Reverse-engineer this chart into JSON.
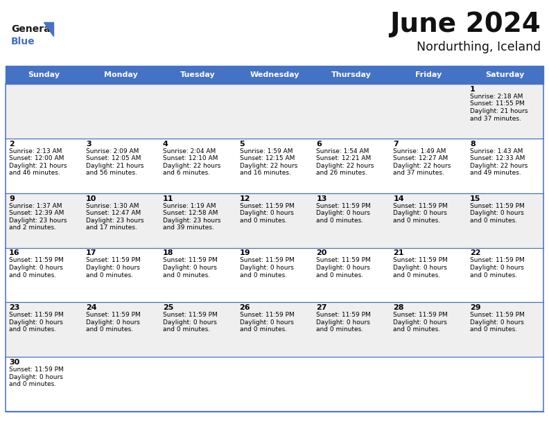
{
  "title": "June 2024",
  "subtitle": "Nordurthing, Iceland",
  "header_color": "#4472C4",
  "header_text_color": "#FFFFFF",
  "days_of_week": [
    "Sunday",
    "Monday",
    "Tuesday",
    "Wednesday",
    "Thursday",
    "Friday",
    "Saturday"
  ],
  "bg_color": "#FFFFFF",
  "alt_row_color": "#EFEFEF",
  "cell_text_color": "#000000",
  "border_color": "#4472C4",
  "calendar_data": [
    [
      null,
      null,
      null,
      null,
      null,
      null,
      {
        "day": 1,
        "sunrise": "2:18 AM",
        "sunset": "11:55 PM",
        "daylight": "21 hours and 37 minutes"
      }
    ],
    [
      {
        "day": 2,
        "sunrise": "2:13 AM",
        "sunset": "12:00 AM",
        "daylight": "21 hours and 46 minutes"
      },
      {
        "day": 3,
        "sunrise": "2:09 AM",
        "sunset": "12:05 AM",
        "daylight": "21 hours and 56 minutes"
      },
      {
        "day": 4,
        "sunrise": "2:04 AM",
        "sunset": "12:10 AM",
        "daylight": "22 hours and 6 minutes"
      },
      {
        "day": 5,
        "sunrise": "1:59 AM",
        "sunset": "12:15 AM",
        "daylight": "22 hours and 16 minutes"
      },
      {
        "day": 6,
        "sunrise": "1:54 AM",
        "sunset": "12:21 AM",
        "daylight": "22 hours and 26 minutes"
      },
      {
        "day": 7,
        "sunrise": "1:49 AM",
        "sunset": "12:27 AM",
        "daylight": "22 hours and 37 minutes"
      },
      {
        "day": 8,
        "sunrise": "1:43 AM",
        "sunset": "12:33 AM",
        "daylight": "22 hours and 49 minutes"
      }
    ],
    [
      {
        "day": 9,
        "sunrise": "1:37 AM",
        "sunset": "12:39 AM",
        "daylight": "23 hours and 2 minutes"
      },
      {
        "day": 10,
        "sunrise": "1:30 AM",
        "sunset": "12:47 AM",
        "daylight": "23 hours and 17 minutes"
      },
      {
        "day": 11,
        "sunrise": "1:19 AM",
        "sunset": "12:58 AM",
        "daylight": "23 hours and 39 minutes"
      },
      {
        "day": 12,
        "sunrise": null,
        "sunset": "11:59 PM",
        "daylight": "0 hours and 0 minutes"
      },
      {
        "day": 13,
        "sunrise": null,
        "sunset": "11:59 PM",
        "daylight": "0 hours and 0 minutes"
      },
      {
        "day": 14,
        "sunrise": null,
        "sunset": "11:59 PM",
        "daylight": "0 hours and 0 minutes"
      },
      {
        "day": 15,
        "sunrise": null,
        "sunset": "11:59 PM",
        "daylight": "0 hours and 0 minutes"
      }
    ],
    [
      {
        "day": 16,
        "sunrise": null,
        "sunset": "11:59 PM",
        "daylight": "0 hours and 0 minutes"
      },
      {
        "day": 17,
        "sunrise": null,
        "sunset": "11:59 PM",
        "daylight": "0 hours and 0 minutes"
      },
      {
        "day": 18,
        "sunrise": null,
        "sunset": "11:59 PM",
        "daylight": "0 hours and 0 minutes"
      },
      {
        "day": 19,
        "sunrise": null,
        "sunset": "11:59 PM",
        "daylight": "0 hours and 0 minutes"
      },
      {
        "day": 20,
        "sunrise": null,
        "sunset": "11:59 PM",
        "daylight": "0 hours and 0 minutes"
      },
      {
        "day": 21,
        "sunrise": null,
        "sunset": "11:59 PM",
        "daylight": "0 hours and 0 minutes"
      },
      {
        "day": 22,
        "sunrise": null,
        "sunset": "11:59 PM",
        "daylight": "0 hours and 0 minutes"
      }
    ],
    [
      {
        "day": 23,
        "sunrise": null,
        "sunset": "11:59 PM",
        "daylight": "0 hours and 0 minutes"
      },
      {
        "day": 24,
        "sunrise": null,
        "sunset": "11:59 PM",
        "daylight": "0 hours and 0 minutes"
      },
      {
        "day": 25,
        "sunrise": null,
        "sunset": "11:59 PM",
        "daylight": "0 hours and 0 minutes"
      },
      {
        "day": 26,
        "sunrise": null,
        "sunset": "11:59 PM",
        "daylight": "0 hours and 0 minutes"
      },
      {
        "day": 27,
        "sunrise": null,
        "sunset": "11:59 PM",
        "daylight": "0 hours and 0 minutes"
      },
      {
        "day": 28,
        "sunrise": null,
        "sunset": "11:59 PM",
        "daylight": "0 hours and 0 minutes"
      },
      {
        "day": 29,
        "sunrise": null,
        "sunset": "11:59 PM",
        "daylight": "0 hours and 0 minutes"
      }
    ],
    [
      {
        "day": 30,
        "sunrise": null,
        "sunset": "11:59 PM",
        "daylight": "0 hours and 0 minutes"
      },
      null,
      null,
      null,
      null,
      null,
      null
    ]
  ]
}
